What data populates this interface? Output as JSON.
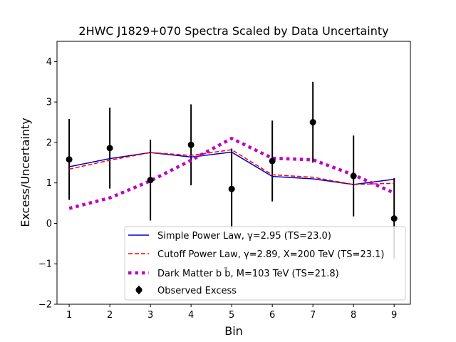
{
  "chart_data": {
    "type": "line",
    "title": "2HWC J1829+070 Spectra Scaled by Data Uncertainty",
    "xlabel": "Bin",
    "ylabel": "Excess/Uncertainty",
    "xlim": [
      0.7,
      9.4
    ],
    "ylim": [
      -2,
      4.5
    ],
    "xticks": [
      1,
      2,
      3,
      4,
      5,
      6,
      7,
      8,
      9
    ],
    "yticks": [
      -2,
      -1,
      0,
      1,
      2,
      3,
      4
    ],
    "grid": false,
    "legend_position": "lower right",
    "series": [
      {
        "name": "Simple Power Law, γ=2.95 (TS=23.0)",
        "style": "solid",
        "color": "#0000cc",
        "x": [
          1,
          2,
          3,
          4,
          5,
          6,
          7,
          8,
          9
        ],
        "y": [
          1.4,
          1.6,
          1.75,
          1.64,
          1.76,
          1.16,
          1.1,
          0.96,
          1.09
        ]
      },
      {
        "name": "Cutoff Power Law, γ=2.89, X=200 TeV (TS=23.1)",
        "style": "dashed",
        "color": "#ff0000",
        "x": [
          1,
          2,
          3,
          4,
          5,
          6,
          7,
          8,
          9
        ],
        "y": [
          1.34,
          1.56,
          1.75,
          1.68,
          1.82,
          1.2,
          1.14,
          0.96,
          0.99
        ]
      },
      {
        "name": "Dark Matter b b̄, M=103 TeV (TS=21.8)",
        "style": "dotted",
        "color": "#bf00bf",
        "x": [
          1,
          2,
          3,
          4,
          5,
          6,
          7,
          8,
          9
        ],
        "y": [
          0.37,
          0.63,
          1.05,
          1.56,
          2.1,
          1.61,
          1.57,
          1.2,
          0.75
        ]
      }
    ],
    "observed": {
      "name": "Observed Excess",
      "color": "#000000",
      "x": [
        1,
        2,
        3,
        4,
        5,
        6,
        7,
        8,
        9
      ],
      "y": [
        1.58,
        1.86,
        1.07,
        1.94,
        0.85,
        1.54,
        2.5,
        1.17,
        0.12
      ],
      "yerr": [
        1.0,
        1.0,
        1.0,
        1.0,
        1.0,
        1.0,
        1.0,
        1.0,
        1.0
      ]
    }
  }
}
